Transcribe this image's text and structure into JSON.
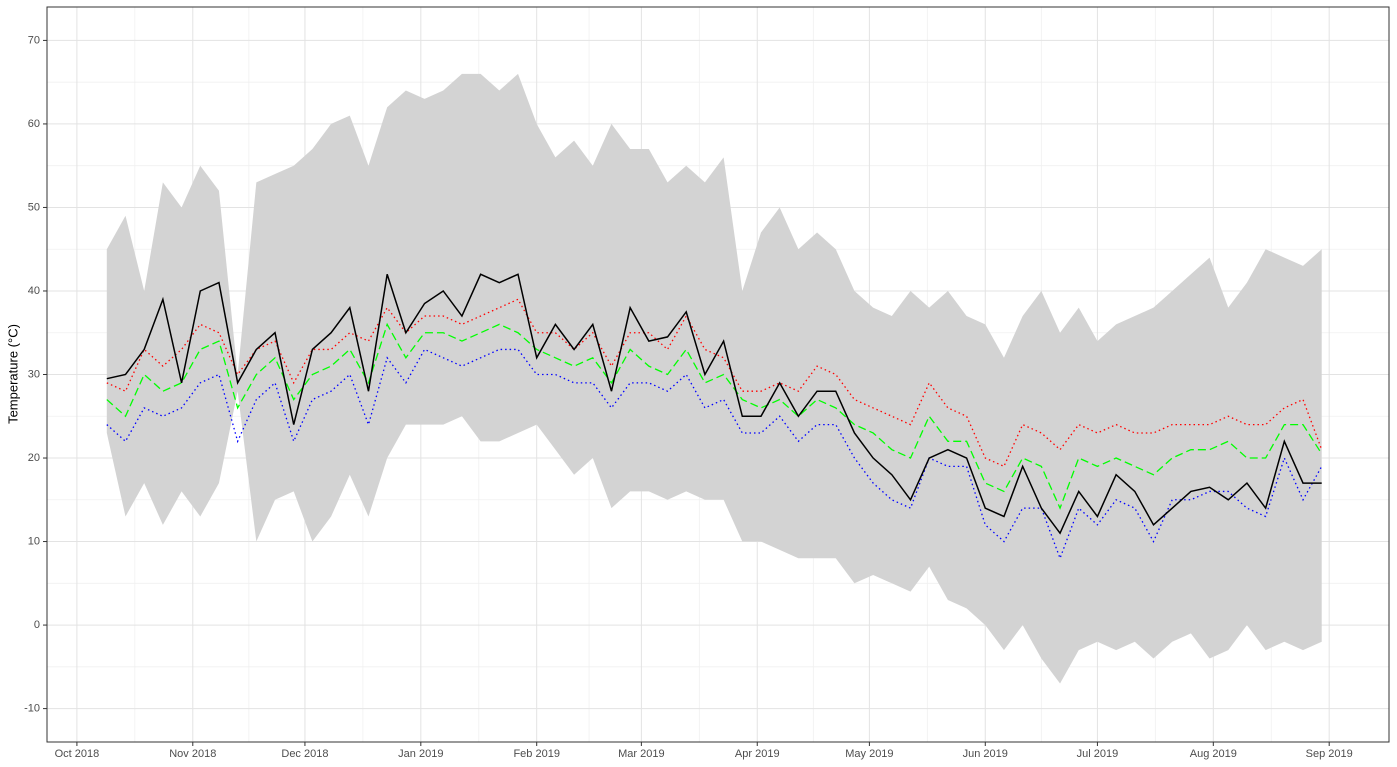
{
  "chart_data": {
    "type": "line",
    "ylabel": "Temperature (°C)",
    "x": [
      "2018-10-09",
      "2018-10-14",
      "2018-10-19",
      "2018-10-24",
      "2018-10-29",
      "2018-11-03",
      "2018-11-08",
      "2018-11-13",
      "2018-11-18",
      "2018-11-23",
      "2018-11-28",
      "2018-12-03",
      "2018-12-08",
      "2018-12-13",
      "2018-12-18",
      "2018-12-23",
      "2018-12-28",
      "2019-01-02",
      "2019-01-07",
      "2019-01-12",
      "2019-01-17",
      "2019-01-22",
      "2019-01-27",
      "2019-02-01",
      "2019-02-06",
      "2019-02-11",
      "2019-02-16",
      "2019-02-21",
      "2019-02-26",
      "2019-03-03",
      "2019-03-08",
      "2019-03-13",
      "2019-03-18",
      "2019-03-23",
      "2019-03-28",
      "2019-04-02",
      "2019-04-07",
      "2019-04-12",
      "2019-04-17",
      "2019-04-22",
      "2019-04-27",
      "2019-05-02",
      "2019-05-07",
      "2019-05-12",
      "2019-05-17",
      "2019-05-22",
      "2019-05-27",
      "2019-06-01",
      "2019-06-06",
      "2019-06-11",
      "2019-06-16",
      "2019-06-21",
      "2019-06-26",
      "2019-07-01",
      "2019-07-06",
      "2019-07-11",
      "2019-07-16",
      "2019-07-21",
      "2019-07-26",
      "2019-07-31",
      "2019-08-05",
      "2019-08-10",
      "2019-08-15",
      "2019-08-20",
      "2019-08-25",
      "2019-08-30"
    ],
    "band": {
      "color": "#d3d3d3",
      "upper": [
        45,
        49,
        40,
        53,
        50,
        55,
        52,
        30,
        53,
        54,
        55,
        57,
        60,
        61,
        55,
        62,
        64,
        63,
        64,
        66,
        66,
        64,
        66,
        60,
        56,
        58,
        55,
        60,
        57,
        57,
        53,
        55,
        53,
        56,
        40,
        47,
        50,
        45,
        47,
        45,
        40,
        38,
        37,
        40,
        38,
        40,
        37,
        36,
        32,
        37,
        40,
        35,
        38,
        34,
        36,
        37,
        38,
        40,
        42,
        44,
        38,
        41,
        45,
        44,
        43,
        45
      ],
      "lower": [
        23,
        13,
        17,
        12,
        16,
        13,
        17,
        28,
        10,
        15,
        16,
        10,
        13,
        18,
        13,
        20,
        24,
        24,
        24,
        25,
        22,
        22,
        23,
        24,
        21,
        18,
        20,
        14,
        16,
        16,
        15,
        16,
        15,
        15,
        10,
        10,
        9,
        8,
        8,
        8,
        5,
        6,
        5,
        4,
        7,
        3,
        2,
        0,
        -3,
        0,
        -4,
        -7,
        -3,
        -2,
        -3,
        -2,
        -4,
        -2,
        -1,
        -4,
        -3,
        0,
        -3,
        -2,
        -3,
        -2
      ]
    },
    "series": [
      {
        "color": "#ff0000",
        "dash": "dotted",
        "values": [
          29,
          28,
          33,
          31,
          33,
          36,
          35,
          30,
          33,
          34,
          29,
          33,
          33,
          35,
          34,
          38,
          35,
          37,
          37,
          36,
          37,
          38,
          39,
          35,
          35,
          33,
          35,
          31,
          35,
          35,
          33,
          37,
          33,
          32,
          28,
          28,
          29,
          28,
          31,
          30,
          27,
          26,
          25,
          24,
          29,
          26,
          25,
          20,
          19,
          24,
          23,
          21,
          24,
          23,
          24,
          23,
          23,
          24,
          24,
          24,
          25,
          24,
          24,
          26,
          27,
          21
        ]
      },
      {
        "color": "#0000ff",
        "dash": "dotted",
        "values": [
          24,
          22,
          26,
          25,
          26,
          29,
          30,
          22,
          27,
          29,
          22,
          27,
          28,
          30,
          24,
          32,
          29,
          33,
          32,
          31,
          32,
          33,
          33,
          30,
          30,
          29,
          29,
          26,
          29,
          29,
          28,
          30,
          26,
          27,
          23,
          23,
          25,
          22,
          24,
          24,
          20,
          17,
          15,
          14,
          20,
          19,
          19,
          12,
          10,
          14,
          14,
          8,
          14,
          12,
          15,
          14,
          10,
          15,
          15,
          16,
          16,
          14,
          13,
          20,
          15,
          19
        ]
      },
      {
        "color": "#00ff00",
        "dash": "dashed",
        "values": [
          27,
          25,
          30,
          28,
          29,
          33,
          34,
          26,
          30,
          32,
          27,
          30,
          31,
          33,
          29,
          36,
          32,
          35,
          35,
          34,
          35,
          36,
          35,
          33,
          32,
          31,
          32,
          29,
          33,
          31,
          30,
          33,
          29,
          30,
          27,
          26,
          27,
          25,
          27,
          26,
          24,
          23,
          21,
          20,
          25,
          22,
          22,
          17,
          16,
          20,
          19,
          14,
          20,
          19,
          20,
          19,
          18,
          20,
          21,
          21,
          22,
          20,
          20,
          24,
          24,
          20.5
        ]
      },
      {
        "color": "#000000",
        "dash": "solid",
        "values": [
          29.5,
          30,
          33,
          39,
          29,
          40,
          41,
          29,
          33,
          35,
          24,
          33,
          35,
          38,
          28,
          42,
          35,
          38.5,
          40,
          37,
          42,
          41,
          42,
          32,
          36,
          33,
          36,
          28,
          38,
          34,
          34.5,
          37.5,
          30,
          34,
          25,
          25,
          29,
          25,
          28,
          28,
          23,
          20,
          18,
          15,
          20,
          21,
          20,
          14,
          13,
          19,
          14,
          11,
          16,
          13,
          18,
          16,
          12,
          14,
          16,
          16.5,
          15,
          17,
          14,
          22,
          17,
          17
        ]
      }
    ],
    "xlim": [
      "2018-09-23",
      "2019-09-17"
    ],
    "xticks": [
      {
        "value": "2018-10-01",
        "label": "Oct 2018"
      },
      {
        "value": "2018-11-01",
        "label": "Nov 2018"
      },
      {
        "value": "2018-12-01",
        "label": "Dec 2018"
      },
      {
        "value": "2019-01-01",
        "label": "Jan 2019"
      },
      {
        "value": "2019-02-01",
        "label": "Feb 2019"
      },
      {
        "value": "2019-03-01",
        "label": "Mar 2019"
      },
      {
        "value": "2019-04-01",
        "label": "Apr 2019"
      },
      {
        "value": "2019-05-01",
        "label": "May 2019"
      },
      {
        "value": "2019-06-01",
        "label": "Jun 2019"
      },
      {
        "value": "2019-07-01",
        "label": "Jul 2019"
      },
      {
        "value": "2019-08-01",
        "label": "Aug 2019"
      },
      {
        "value": "2019-09-01",
        "label": "Sep 2019"
      }
    ],
    "ylim": [
      -14,
      74
    ],
    "yticks": [
      -10,
      0,
      10,
      20,
      30,
      40,
      50,
      60,
      70
    ],
    "grid": true,
    "minor_grid": true
  }
}
